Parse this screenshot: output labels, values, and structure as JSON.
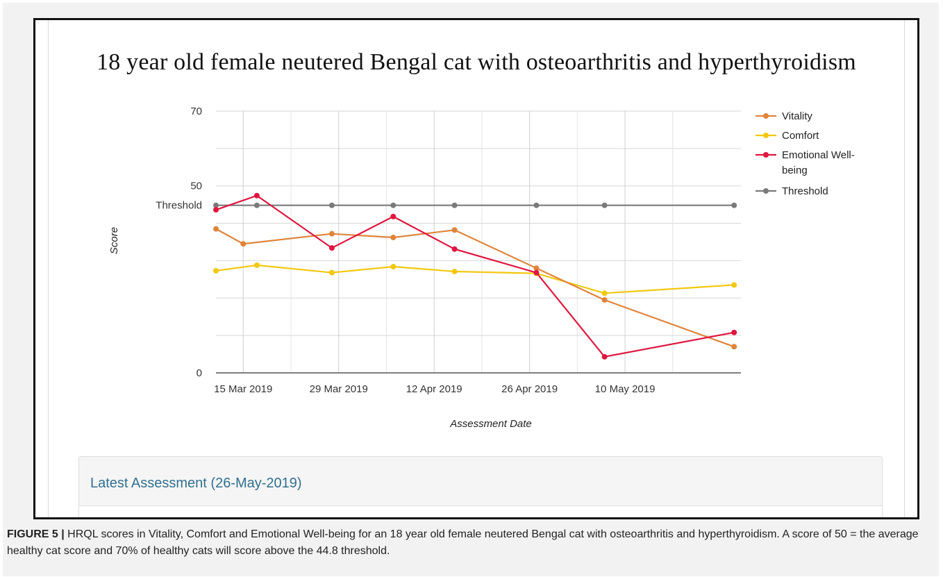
{
  "figure": {
    "label": "FIGURE 5 |",
    "caption": "HRQL scores in Vitality, Comfort and Emotional Well-being for an 18 year old female neutered Bengal cat with osteoarthritis and hyperthyroidism. A score of 50 = the average healthy cat score and 70% of healthy cats will score above the 44.8 threshold."
  },
  "panel": {
    "header": "Latest Assessment (26-May-2019)"
  },
  "chart_data": {
    "type": "line",
    "title": "18 year old female neutered Bengal cat with osteoarthritis and hyperthyroidism",
    "xlabel": "Assessment Date",
    "ylabel": "Score",
    "ylim": [
      0,
      70
    ],
    "y_ticks": [
      0,
      50,
      70
    ],
    "y_tick_labels": [
      "0",
      "50",
      "70"
    ],
    "y_extra_label": {
      "text": "Threshold",
      "value": 44.8
    },
    "x_ticks": [
      "2019-03-15",
      "2019-03-29",
      "2019-04-12",
      "2019-04-26",
      "2019-05-10"
    ],
    "x_tick_labels": [
      "15 Mar 2019",
      "29 Mar 2019",
      "12 Apr 2019",
      "26 Apr 2019",
      "10 May 2019"
    ],
    "xlim": [
      "2019-03-11",
      "2019-05-27"
    ],
    "grid": true,
    "legend_position": "right",
    "series": [
      {
        "name": "Vitality",
        "color": "#e0843a",
        "points": [
          [
            "2019-03-11",
            38.5
          ],
          [
            "2019-03-15",
            34.5
          ],
          [
            "2019-03-28",
            37.2
          ],
          [
            "2019-04-06",
            36.2
          ],
          [
            "2019-04-15",
            38.2
          ],
          [
            "2019-04-27",
            28.0
          ],
          [
            "2019-05-07",
            19.5
          ],
          [
            "2019-05-26",
            7.0
          ]
        ]
      },
      {
        "name": "Comfort",
        "color": "#f2c80f",
        "points": [
          [
            "2019-03-11",
            27.3
          ],
          [
            "2019-03-17",
            28.8
          ],
          [
            "2019-03-28",
            26.8
          ],
          [
            "2019-04-06",
            28.4
          ],
          [
            "2019-04-15",
            27.1
          ],
          [
            "2019-04-27",
            26.6
          ],
          [
            "2019-05-07",
            21.3
          ],
          [
            "2019-05-26",
            23.5
          ]
        ]
      },
      {
        "name": "Emotional Well-being",
        "color": "#e0163f",
        "points": [
          [
            "2019-03-11",
            43.6
          ],
          [
            "2019-03-17",
            47.4
          ],
          [
            "2019-03-28",
            33.4
          ],
          [
            "2019-04-06",
            41.8
          ],
          [
            "2019-04-15",
            33.1
          ],
          [
            "2019-04-27",
            26.8
          ],
          [
            "2019-05-07",
            4.3
          ],
          [
            "2019-05-26",
            10.8
          ]
        ]
      },
      {
        "name": "Threshold",
        "color": "#7a7a7a",
        "points": [
          [
            "2019-03-11",
            44.8
          ],
          [
            "2019-03-17",
            44.8
          ],
          [
            "2019-03-28",
            44.8
          ],
          [
            "2019-04-06",
            44.8
          ],
          [
            "2019-04-15",
            44.8
          ],
          [
            "2019-04-27",
            44.8
          ],
          [
            "2019-05-07",
            44.8
          ],
          [
            "2019-05-26",
            44.8
          ]
        ]
      }
    ]
  }
}
